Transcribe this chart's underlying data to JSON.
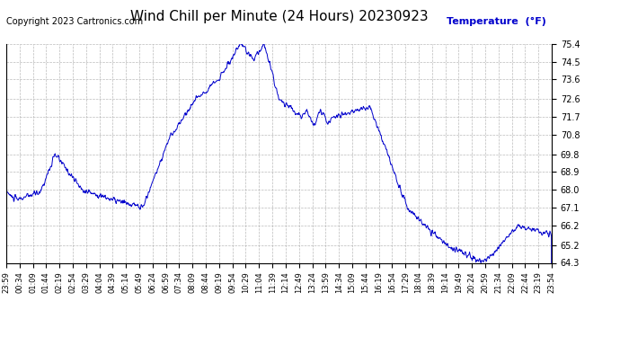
{
  "title": "Wind Chill per Minute (24 Hours) 20230923",
  "ylabel": "Temperature  (°F)",
  "copyright_text": "Copyright 2023 Cartronics.com",
  "line_color": "#0000CC",
  "background_color": "#ffffff",
  "grid_color": "#aaaaaa",
  "ylabel_color": "#0000CC",
  "ylim": [
    64.3,
    75.4
  ],
  "yticks": [
    64.3,
    65.2,
    66.2,
    67.1,
    68.0,
    68.9,
    69.8,
    70.8,
    71.7,
    72.6,
    73.6,
    74.5,
    75.4
  ],
  "xtick_labels": [
    "23:59",
    "00:34",
    "01:09",
    "01:44",
    "02:19",
    "02:54",
    "03:29",
    "04:04",
    "04:39",
    "05:14",
    "05:49",
    "06:24",
    "06:59",
    "07:34",
    "08:09",
    "08:44",
    "09:19",
    "09:54",
    "10:29",
    "11:04",
    "11:39",
    "12:14",
    "12:49",
    "13:24",
    "13:59",
    "14:34",
    "15:09",
    "15:44",
    "16:19",
    "16:54",
    "17:29",
    "18:04",
    "18:39",
    "19:14",
    "19:49",
    "20:24",
    "20:59",
    "21:34",
    "22:09",
    "22:44",
    "23:19",
    "23:54"
  ],
  "title_fontsize": 11,
  "axis_fontsize": 7,
  "copyright_fontsize": 7,
  "ylabel_fontsize": 8
}
